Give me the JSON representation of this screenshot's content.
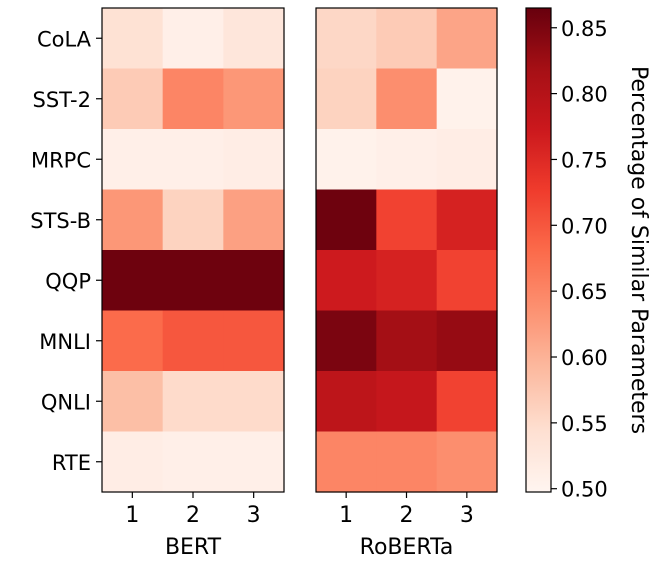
{
  "chart_data": [
    {
      "type": "heatmap",
      "title": "",
      "xlabel": "BERT",
      "ylabel": "",
      "x": [
        "1",
        "2",
        "3"
      ],
      "y": [
        "CoLA",
        "SST-2",
        "MRPC",
        "STS-B",
        "QQP",
        "MNLI",
        "QNLI",
        "RTE"
      ],
      "values": [
        [
          0.54,
          0.51,
          0.53
        ],
        [
          0.57,
          0.65,
          0.63
        ],
        [
          0.51,
          0.51,
          0.515
        ],
        [
          0.63,
          0.56,
          0.62
        ],
        [
          0.86,
          0.86,
          0.86
        ],
        [
          0.68,
          0.7,
          0.7
        ],
        [
          0.585,
          0.55,
          0.55
        ],
        [
          0.515,
          0.51,
          0.51
        ]
      ]
    },
    {
      "type": "heatmap",
      "title": "",
      "xlabel": "RoBERTa",
      "ylabel": "",
      "x": [
        "1",
        "2",
        "3"
      ],
      "y": [
        "CoLA",
        "SST-2",
        "MRPC",
        "STS-B",
        "QQP",
        "MNLI",
        "QNLI",
        "RTE"
      ],
      "values": [
        [
          0.555,
          0.57,
          0.615
        ],
        [
          0.56,
          0.64,
          0.505
        ],
        [
          0.505,
          0.51,
          0.515
        ],
        [
          0.86,
          0.72,
          0.76
        ],
        [
          0.77,
          0.76,
          0.72
        ],
        [
          0.85,
          0.82,
          0.83
        ],
        [
          0.79,
          0.78,
          0.72
        ],
        [
          0.65,
          0.65,
          0.64
        ]
      ]
    }
  ],
  "colorbar": {
    "label": "Percentage of Similar Parameters",
    "colormap": "Reds",
    "vmin": 0.4975,
    "vmax": 0.865,
    "ticks": [
      0.5,
      0.55,
      0.6,
      0.65,
      0.7,
      0.75,
      0.8,
      0.85
    ],
    "tick_labels": [
      "0.50",
      "0.55",
      "0.60",
      "0.65",
      "0.70",
      "0.75",
      "0.80",
      "0.85"
    ]
  },
  "colors": {
    "stops": [
      "#fff5f0",
      "#fee0d2",
      "#fcbba1",
      "#fc9272",
      "#fb6a4a",
      "#ef3b2c",
      "#cb181d",
      "#a50f15",
      "#67000d"
    ]
  }
}
